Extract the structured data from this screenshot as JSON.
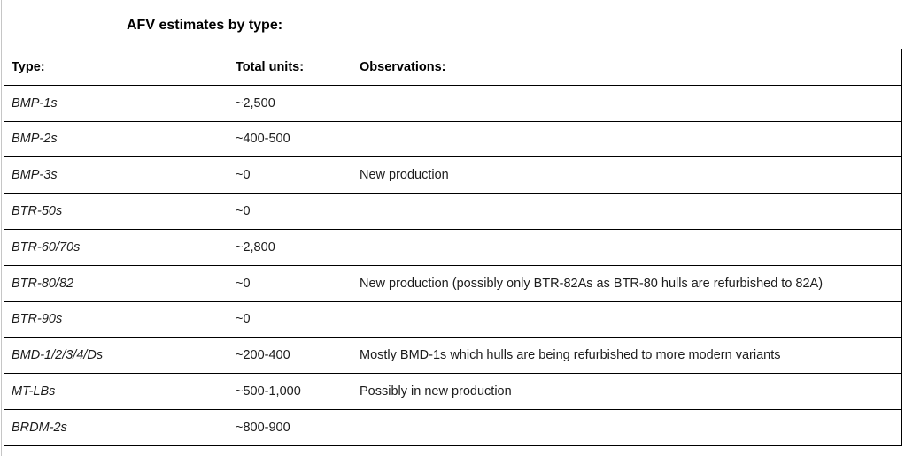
{
  "title": "AFV estimates by type:",
  "table": {
    "columns": [
      "Type:",
      "Total units:",
      "Observations:"
    ],
    "rows": [
      {
        "type": "BMP-1s",
        "units": "~2,500",
        "obs": ""
      },
      {
        "type": "BMP-2s",
        "units": "~400-500",
        "obs": ""
      },
      {
        "type": "BMP-3s",
        "units": "~0",
        "obs": "New production"
      },
      {
        "type": "BTR-50s",
        "units": "~0",
        "obs": ""
      },
      {
        "type": "BTR-60/70s",
        "units": "~2,800",
        "obs": ""
      },
      {
        "type": "BTR-80/82",
        "units": "~0",
        "obs": "New production (possibly only BTR-82As as BTR-80 hulls are refurbished to 82A)"
      },
      {
        "type": "BTR-90s",
        "units": "~0",
        "obs": ""
      },
      {
        "type": "BMD-1/2/3/4/Ds",
        "units": "~200-400",
        "obs": "Mostly BMD-1s which hulls are being refurbished to more modern variants"
      },
      {
        "type": "MT-LBs",
        "units": "~500-1,000",
        "obs": "Possibly in new production"
      },
      {
        "type": "BRDM-2s",
        "units": "~800-900",
        "obs": ""
      }
    ]
  }
}
